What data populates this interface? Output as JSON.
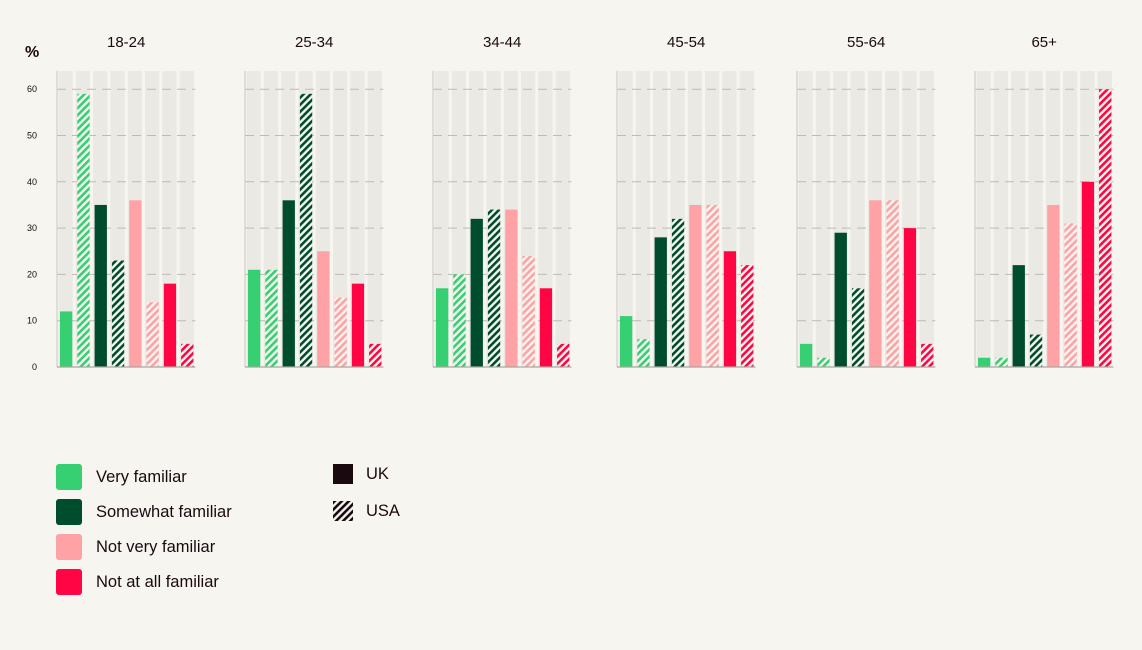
{
  "chart_data": {
    "type": "bar",
    "ylabel": "%",
    "ylim": [
      0,
      65
    ],
    "yticks": [
      0,
      10,
      20,
      30,
      40,
      50,
      60
    ],
    "grid": "dashed horizontal",
    "categories": [
      "18-24",
      "25-34",
      "34-44",
      "45-54",
      "55-64",
      "65+"
    ],
    "series": [
      {
        "name": "Very familiar",
        "country": "UK",
        "color": "#36cf72",
        "pattern": "solid",
        "values": [
          12,
          21,
          17,
          11,
          5,
          2
        ]
      },
      {
        "name": "Very familiar",
        "country": "USA",
        "color": "#36cf72",
        "pattern": "hatched",
        "values": [
          59,
          21,
          20,
          6,
          2,
          2
        ]
      },
      {
        "name": "Somewhat familiar",
        "country": "UK",
        "color": "#004d2e",
        "pattern": "solid",
        "values": [
          35,
          36,
          32,
          28,
          29,
          22
        ]
      },
      {
        "name": "Somewhat familiar",
        "country": "USA",
        "color": "#004d2e",
        "pattern": "hatched",
        "values": [
          23,
          59,
          34,
          32,
          17,
          7
        ]
      },
      {
        "name": "Not very familiar",
        "country": "UK",
        "color": "#ffa2a6",
        "pattern": "solid",
        "values": [
          36,
          25,
          34,
          35,
          36,
          35
        ]
      },
      {
        "name": "Not very familiar",
        "country": "USA",
        "color": "#ffa2a6",
        "pattern": "hatched",
        "values": [
          14,
          15,
          24,
          35,
          36,
          31
        ]
      },
      {
        "name": "Not at all familiar",
        "country": "UK",
        "color": "#ff0543",
        "pattern": "solid",
        "values": [
          18,
          18,
          17,
          25,
          30,
          40
        ]
      },
      {
        "name": "Not at all familiar",
        "country": "USA",
        "color": "#ff0543",
        "pattern": "hatched",
        "values": [
          5,
          5,
          5,
          22,
          5,
          60
        ]
      }
    ]
  },
  "legend": {
    "familiarity": [
      {
        "label": "Very familiar",
        "color": "#36cf72"
      },
      {
        "label": "Somewhat familiar",
        "color": "#004d2e"
      },
      {
        "label": "Not very familiar",
        "color": "#ffa2a6"
      },
      {
        "label": "Not at all familiar",
        "color": "#ff0543"
      }
    ],
    "country": [
      {
        "label": "UK",
        "pattern": "solid",
        "color": "#1a0a10"
      },
      {
        "label": "USA",
        "pattern": "hatched",
        "color": "#1a0a10"
      }
    ]
  }
}
